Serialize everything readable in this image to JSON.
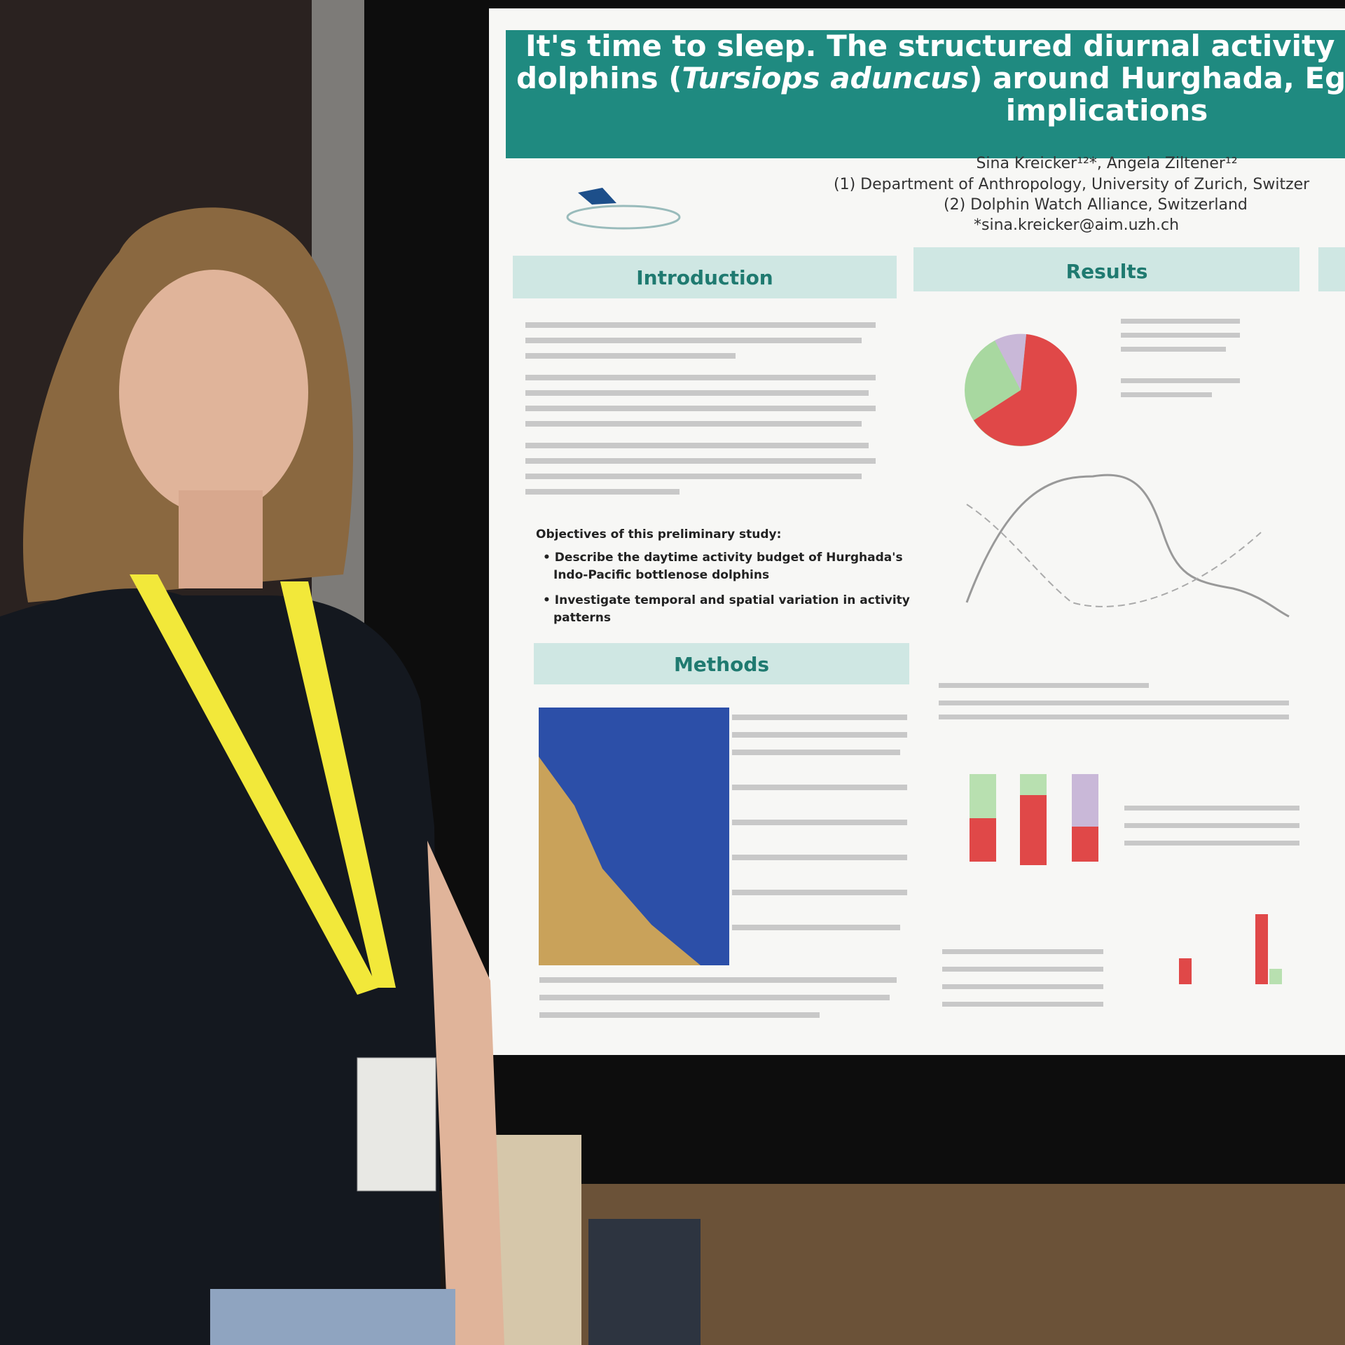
{
  "poster": {
    "title": {
      "line1": "It's time to sleep. The structured diurnal activity pattern o",
      "line2_start": "dolphins (",
      "line2_italic": "Tursiops aduncus",
      "line2_end": ") around Hurghada, Egyptian Red",
      "line3": "implications"
    },
    "authors": "Sina Kreicker¹²*, Angela Ziltener¹²",
    "affiliations": [
      "(1) Department of Anthropology, University of Zurich, Switzer",
      "(2) Dolphin Watch Alliance, Switzerland"
    ],
    "email": "*sina.kreicker@aim.uzh.ch",
    "sections": {
      "introduction": "Introduction",
      "results": "Results",
      "methods": "Methods"
    },
    "objectives": {
      "heading": "Objectives of this preliminary study:",
      "items": [
        [
          "Describe the daytime activity budget of Hurghada's",
          "Indo-Pacific bottlenose dolphins"
        ],
        [
          "Investigate temporal and spatial variation in activity",
          "patterns"
        ]
      ]
    }
  }
}
